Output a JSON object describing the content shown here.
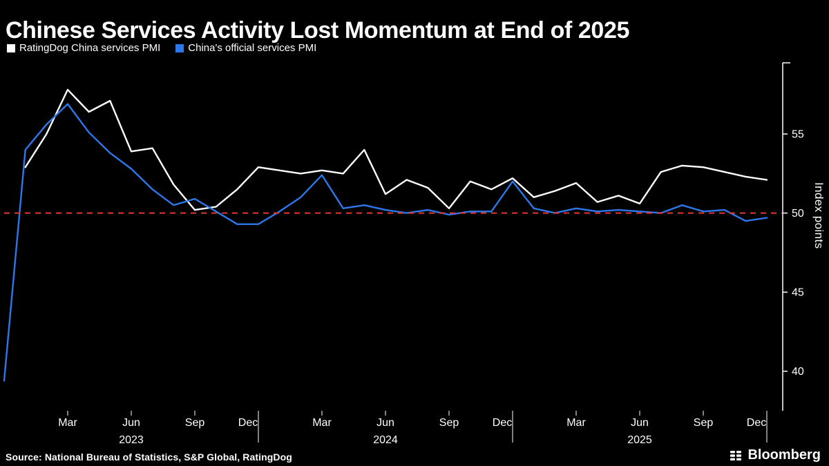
{
  "title": "Chinese Services Activity Lost Momentum at End of 2025",
  "legend": [
    {
      "label": "RatingDog China services PMI",
      "color": "#ffffff"
    },
    {
      "label": "China's official services PMI",
      "color": "#2d78eb"
    }
  ],
  "source": "Source: National Bureau of Statistics, S&P Global, RatingDog",
  "logo": "Bloomberg",
  "colors": {
    "background": "#000000",
    "axis": "#ffffff",
    "baseline_red": "#e8352c",
    "series_white": "#ffffff",
    "series_blue": "#2d78eb"
  },
  "chart_data": {
    "type": "line",
    "title": "Chinese Services Activity Lost Momentum at End of 2025",
    "ylabel": "Index points",
    "y_axis_side": "right",
    "ylim": [
      37.5,
      59.5
    ],
    "yticks": [
      40,
      45,
      50,
      55
    ],
    "grid": false,
    "legend_position": "top-left",
    "x": [
      "Dec 2022",
      "Jan 2023",
      "Feb 2023",
      "Mar 2023",
      "Apr 2023",
      "May 2023",
      "Jun 2023",
      "Jul 2023",
      "Aug 2023",
      "Sep 2023",
      "Oct 2023",
      "Nov 2023",
      "Dec 2023",
      "Jan 2024",
      "Feb 2024",
      "Mar 2024",
      "Apr 2024",
      "May 2024",
      "Jun 2024",
      "Jul 2024",
      "Aug 2024",
      "Sep 2024",
      "Oct 2024",
      "Nov 2024",
      "Dec 2024",
      "Jan 2025",
      "Feb 2025",
      "Mar 2025",
      "Apr 2025",
      "May 2025",
      "Jun 2025",
      "Jul 2025",
      "Aug 2025",
      "Sep 2025",
      "Oct 2025",
      "Nov 2025",
      "Dec 2025"
    ],
    "series": [
      {
        "name": "RatingDog China services PMI",
        "color": "#ffffff",
        "values": [
          null,
          52.9,
          55.0,
          57.8,
          56.4,
          57.1,
          53.9,
          54.1,
          51.8,
          50.2,
          50.4,
          51.5,
          52.9,
          52.7,
          52.5,
          52.7,
          52.5,
          54.0,
          51.2,
          52.1,
          51.6,
          50.3,
          52.0,
          51.5,
          52.2,
          51.0,
          51.4,
          51.9,
          50.7,
          51.1,
          50.6,
          52.6,
          53.0,
          52.9,
          52.6,
          52.3,
          52.1
        ]
      },
      {
        "name": "China's official services PMI",
        "color": "#2d78eb",
        "values": [
          39.4,
          54.0,
          55.6,
          56.9,
          55.1,
          53.8,
          52.8,
          51.5,
          50.5,
          50.9,
          50.1,
          49.3,
          49.3,
          50.1,
          51.0,
          52.4,
          50.3,
          50.5,
          50.2,
          50.0,
          50.2,
          49.9,
          50.1,
          50.1,
          52.0,
          50.3,
          50.0,
          50.3,
          50.1,
          50.2,
          50.1,
          50.0,
          50.5,
          50.1,
          50.2,
          49.5,
          49.7
        ]
      }
    ],
    "baseline": {
      "value": 50,
      "color": "#e8352c",
      "style": "dashed"
    },
    "xticks": [
      {
        "index": 3,
        "label": "Mar",
        "year_end": false
      },
      {
        "index": 6,
        "label": "Jun",
        "year_end": false
      },
      {
        "index": 9,
        "label": "Sep",
        "year_end": false
      },
      {
        "index": 12,
        "label": "Dec",
        "year_end": true
      },
      {
        "index": 15,
        "label": "Mar",
        "year_end": false
      },
      {
        "index": 18,
        "label": "Jun",
        "year_end": false
      },
      {
        "index": 21,
        "label": "Sep",
        "year_end": false
      },
      {
        "index": 24,
        "label": "Dec",
        "year_end": true
      },
      {
        "index": 27,
        "label": "Mar",
        "year_end": false
      },
      {
        "index": 30,
        "label": "Jun",
        "year_end": false
      },
      {
        "index": 33,
        "label": "Sep",
        "year_end": false
      },
      {
        "index": 36,
        "label": "Dec",
        "year_end": true
      }
    ],
    "year_labels": [
      {
        "index": 6,
        "label": "2023"
      },
      {
        "index": 18,
        "label": "2024"
      },
      {
        "index": 30,
        "label": "2025"
      }
    ]
  }
}
